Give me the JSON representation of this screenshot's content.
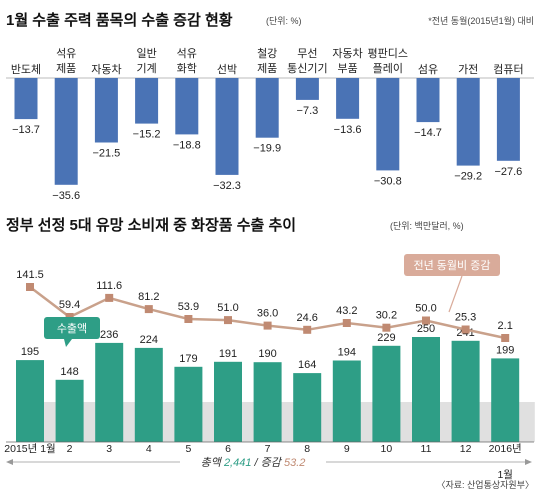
{
  "top_title": "1월 수출 주력 품목의 수출 증감 현황",
  "top_unit": "(단위: %)",
  "top_note": "*전년 동월(2015년1월) 대비",
  "bottom_title": "정부 선정 5대 유망 소비재 중 화장품 수출 추이",
  "bottom_unit": "(단위: 백만달러, %)",
  "source": "〈자료: 산업통상자원부〉",
  "total_text": {
    "prefix": "총액",
    "total": "2,441",
    "sep": "/ 증감",
    "change": "53.2"
  },
  "colors": {
    "blue": "#4a73b5",
    "teal": "#2e9e86",
    "line": "#c9a18b",
    "marker": "#c08a72",
    "badge_line": "#d9ab9a",
    "shadow": "#e0e0e0"
  },
  "chart_data": [
    {
      "type": "bar",
      "title": "1월 수출 주력 품목의 수출 증감 현황",
      "unit": "%",
      "categories": [
        [
          "반도체"
        ],
        [
          "석유",
          "제품"
        ],
        [
          "자동차"
        ],
        [
          "일반",
          "기계"
        ],
        [
          "석유",
          "화학"
        ],
        [
          "선박"
        ],
        [
          "철강",
          "제품"
        ],
        [
          "무선",
          "통신기기"
        ],
        [
          "자동차",
          "부품"
        ],
        [
          "평판디스",
          "플레이"
        ],
        [
          "섬유"
        ],
        [
          "가전"
        ],
        [
          "컴퓨터"
        ]
      ],
      "values": [
        -13.7,
        -35.6,
        -21.5,
        -15.2,
        -18.8,
        -32.3,
        -19.9,
        -7.3,
        -13.6,
        -30.8,
        -14.7,
        -29.2,
        -27.6
      ],
      "value_labels": [
        "−13.7",
        "−35.6",
        "−21.5",
        "−15.2",
        "−18.8",
        "−32.3",
        "−19.9",
        "−7.3",
        "−13.6",
        "−30.8",
        "−14.7",
        "−29.2",
        "−27.6"
      ],
      "ylim": [
        -40,
        0
      ]
    },
    {
      "type": "bar+line",
      "title": "정부 선정 5대 유망 소비재 중 화장품 수출 추이",
      "x_labels": [
        "2015년 1월",
        "2",
        "3",
        "4",
        "5",
        "6",
        "7",
        "8",
        "9",
        "10",
        "11",
        "12",
        "2016년"
      ],
      "x_labels_second_line": [
        "",
        "",
        "",
        "",
        "",
        "",
        "",
        "",
        "",
        "",
        "",
        "",
        "1월"
      ],
      "series": [
        {
          "name": "수출액",
          "type": "bar",
          "unit": "백만달러",
          "values": [
            195,
            148,
            236,
            224,
            179,
            191,
            190,
            164,
            194,
            229,
            250,
            241,
            199
          ],
          "labels": [
            "195",
            "148",
            "236",
            "224",
            "179",
            "191",
            "190",
            "164",
            "194",
            "229",
            "250",
            "241",
            "199"
          ]
        },
        {
          "name": "전년 동월비 증감",
          "type": "line",
          "unit": "%",
          "values": [
            141.5,
            59.4,
            111.6,
            81.2,
            53.9,
            51.0,
            36.0,
            24.6,
            43.2,
            30.2,
            50.0,
            25.3,
            2.1
          ],
          "labels": [
            "141.5",
            "59.4",
            "111.6",
            "81.2",
            "53.9",
            "51.0",
            "36.0",
            "24.6",
            "43.2",
            "30.2",
            "50.0",
            "25.3",
            "2.1"
          ]
        }
      ]
    }
  ]
}
